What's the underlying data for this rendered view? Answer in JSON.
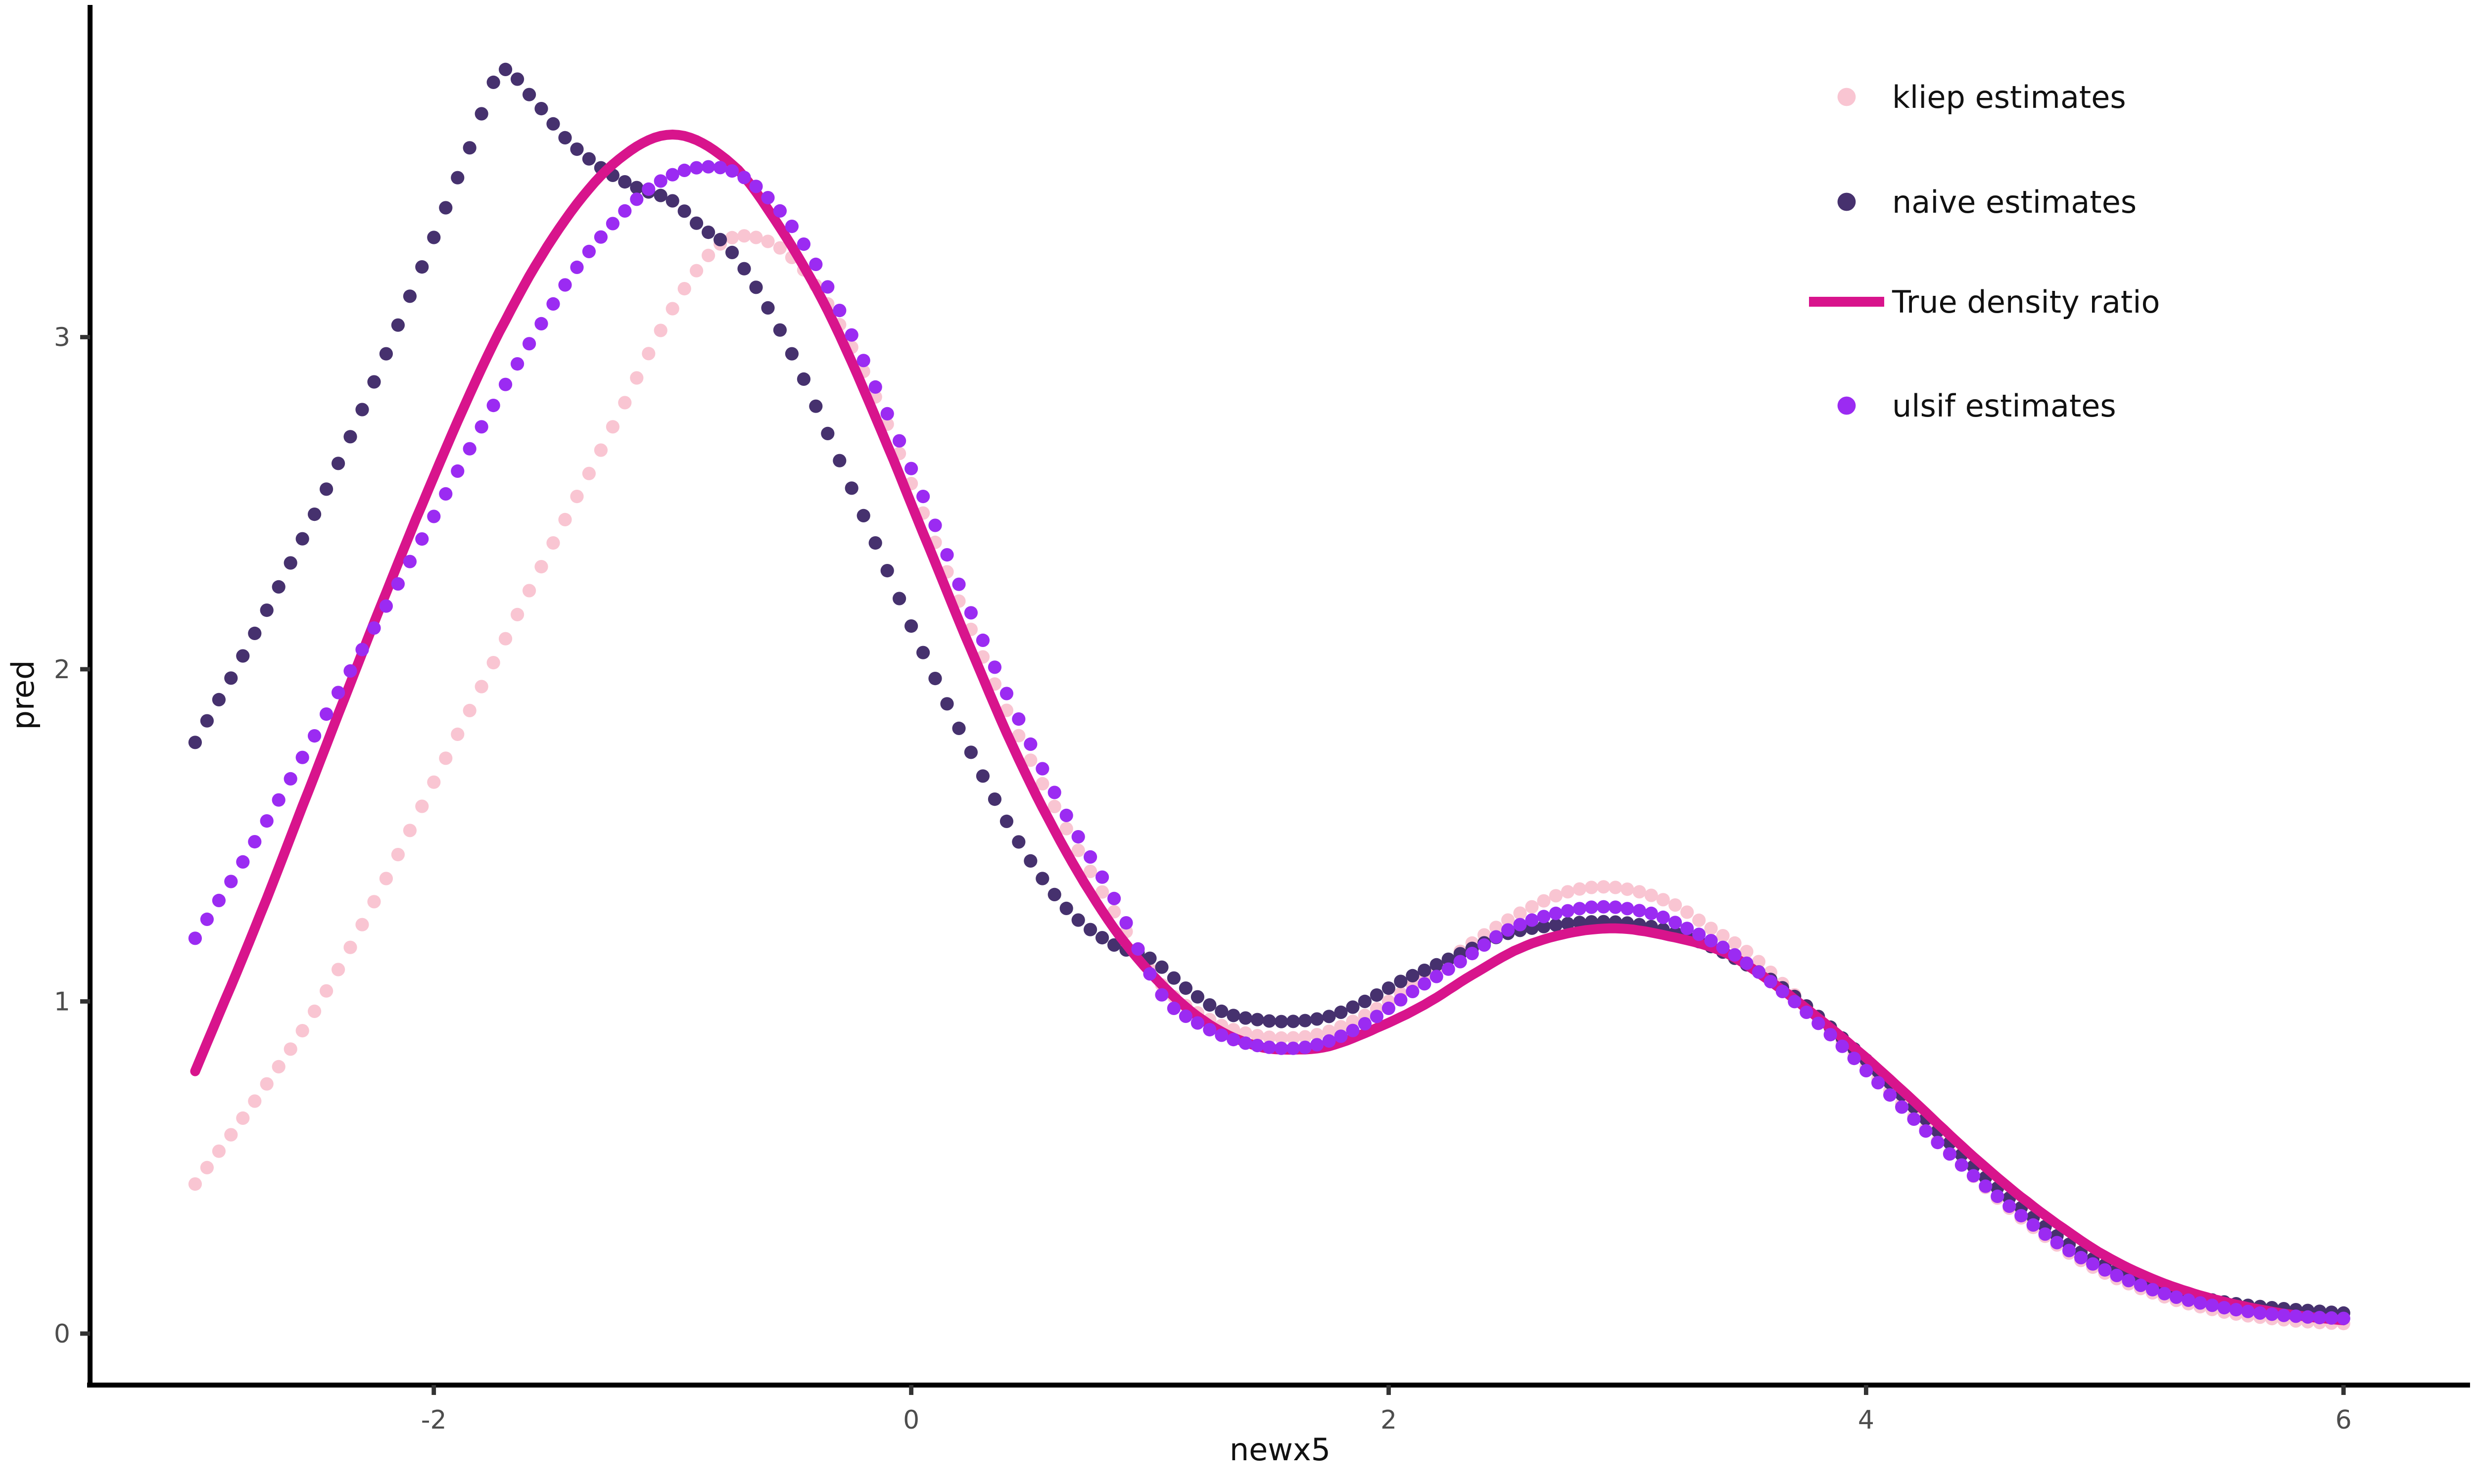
{
  "chart_data": {
    "type": "scatter",
    "title": "",
    "xlabel": "newx5",
    "ylabel": "pred",
    "x_ticks": [
      -2,
      0,
      2,
      4,
      6
    ],
    "y_ticks": [
      0,
      1,
      2,
      3
    ],
    "xlim": [
      -3.44,
      6.53
    ],
    "ylim": [
      -0.155,
      4.0
    ],
    "grid": false,
    "legend_position": "top-right-inside",
    "dot_step": 0.05,
    "x_range": [
      -3.0,
      6.0
    ],
    "series": [
      {
        "name": "kliep estimates",
        "kind": "points",
        "color": "#F9C5D2",
        "points": [
          [
            -3.0,
            0.45
          ],
          [
            -2.75,
            0.7
          ],
          [
            -2.5,
            0.97
          ],
          [
            -2.25,
            1.3
          ],
          [
            -2.0,
            1.66
          ],
          [
            -1.75,
            2.02
          ],
          [
            -1.5,
            2.38
          ],
          [
            -1.25,
            2.73
          ],
          [
            -1.05,
            3.02
          ],
          [
            -0.9,
            3.2
          ],
          [
            -0.78,
            3.29
          ],
          [
            -0.65,
            3.3
          ],
          [
            -0.5,
            3.24
          ],
          [
            -0.35,
            3.1
          ],
          [
            -0.15,
            2.82
          ],
          [
            0.05,
            2.47
          ],
          [
            0.25,
            2.12
          ],
          [
            0.45,
            1.8
          ],
          [
            0.65,
            1.52
          ],
          [
            0.85,
            1.27
          ],
          [
            1.05,
            1.05
          ],
          [
            1.25,
            0.945
          ],
          [
            1.4,
            0.905
          ],
          [
            1.55,
            0.89
          ],
          [
            1.7,
            0.9
          ],
          [
            1.85,
            0.94
          ],
          [
            2.0,
            1.0
          ],
          [
            2.2,
            1.1
          ],
          [
            2.4,
            1.2
          ],
          [
            2.6,
            1.285
          ],
          [
            2.75,
            1.33
          ],
          [
            2.9,
            1.345
          ],
          [
            3.05,
            1.33
          ],
          [
            3.2,
            1.29
          ],
          [
            3.35,
            1.22
          ],
          [
            3.5,
            1.15
          ],
          [
            3.7,
            1.02
          ],
          [
            3.9,
            0.88
          ],
          [
            4.1,
            0.73
          ],
          [
            4.3,
            0.58
          ],
          [
            4.5,
            0.44
          ],
          [
            4.7,
            0.32
          ],
          [
            4.9,
            0.22
          ],
          [
            5.1,
            0.15
          ],
          [
            5.3,
            0.1
          ],
          [
            5.5,
            0.065
          ],
          [
            5.7,
            0.045
          ],
          [
            5.9,
            0.033
          ],
          [
            6.0,
            0.03
          ]
        ]
      },
      {
        "name": "naive estimates",
        "kind": "points",
        "color": "#46316E",
        "points": [
          [
            -3.0,
            1.78
          ],
          [
            -2.8,
            2.04
          ],
          [
            -2.6,
            2.32
          ],
          [
            -2.4,
            2.62
          ],
          [
            -2.2,
            2.95
          ],
          [
            -2.0,
            3.3
          ],
          [
            -1.85,
            3.57
          ],
          [
            -1.72,
            3.8
          ],
          [
            -1.6,
            3.73
          ],
          [
            -1.45,
            3.6
          ],
          [
            -1.3,
            3.51
          ],
          [
            -1.15,
            3.45
          ],
          [
            -1.0,
            3.41
          ],
          [
            -0.88,
            3.33
          ],
          [
            -0.78,
            3.28
          ],
          [
            -0.65,
            3.15
          ],
          [
            -0.5,
            2.95
          ],
          [
            -0.35,
            2.71
          ],
          [
            -0.15,
            2.38
          ],
          [
            0.05,
            2.05
          ],
          [
            0.25,
            1.75
          ],
          [
            0.45,
            1.48
          ],
          [
            0.65,
            1.28
          ],
          [
            0.85,
            1.17
          ],
          [
            1.0,
            1.13
          ],
          [
            1.15,
            1.04
          ],
          [
            1.3,
            0.97
          ],
          [
            1.45,
            0.945
          ],
          [
            1.6,
            0.94
          ],
          [
            1.75,
            0.955
          ],
          [
            1.9,
            1.0
          ],
          [
            2.05,
            1.06
          ],
          [
            2.2,
            1.11
          ],
          [
            2.35,
            1.16
          ],
          [
            2.5,
            1.205
          ],
          [
            2.7,
            1.23
          ],
          [
            2.9,
            1.24
          ],
          [
            3.1,
            1.225
          ],
          [
            3.3,
            1.18
          ],
          [
            3.5,
            1.11
          ],
          [
            3.7,
            1.015
          ],
          [
            3.9,
            0.89
          ],
          [
            4.1,
            0.755
          ],
          [
            4.3,
            0.61
          ],
          [
            4.5,
            0.47
          ],
          [
            4.7,
            0.35
          ],
          [
            4.9,
            0.245
          ],
          [
            5.1,
            0.175
          ],
          [
            5.3,
            0.125
          ],
          [
            5.5,
            0.095
          ],
          [
            5.7,
            0.078
          ],
          [
            5.9,
            0.067
          ],
          [
            6.0,
            0.062
          ]
        ]
      },
      {
        "name": "True density ratio",
        "kind": "line",
        "color": "#D8148C",
        "points": [
          [
            -3.0,
            0.79
          ],
          [
            -2.75,
            1.22
          ],
          [
            -2.5,
            1.68
          ],
          [
            -2.25,
            2.14
          ],
          [
            -2.0,
            2.58
          ],
          [
            -1.75,
            2.98
          ],
          [
            -1.5,
            3.3
          ],
          [
            -1.25,
            3.52
          ],
          [
            -1.0,
            3.61
          ],
          [
            -0.75,
            3.52
          ],
          [
            -0.55,
            3.33
          ],
          [
            -0.35,
            3.08
          ],
          [
            -0.15,
            2.76
          ],
          [
            0.05,
            2.41
          ],
          [
            0.25,
            2.06
          ],
          [
            0.45,
            1.73
          ],
          [
            0.65,
            1.45
          ],
          [
            0.85,
            1.22
          ],
          [
            1.05,
            1.05
          ],
          [
            1.25,
            0.93
          ],
          [
            1.45,
            0.865
          ],
          [
            1.6,
            0.855
          ],
          [
            1.75,
            0.865
          ],
          [
            1.95,
            0.92
          ],
          [
            2.15,
            0.99
          ],
          [
            2.35,
            1.08
          ],
          [
            2.55,
            1.16
          ],
          [
            2.75,
            1.205
          ],
          [
            2.95,
            1.22
          ],
          [
            3.15,
            1.2
          ],
          [
            3.4,
            1.15
          ],
          [
            3.6,
            1.06
          ],
          [
            3.8,
            0.95
          ],
          [
            4.0,
            0.83
          ],
          [
            4.2,
            0.7
          ],
          [
            4.4,
            0.565
          ],
          [
            4.6,
            0.44
          ],
          [
            4.8,
            0.33
          ],
          [
            5.0,
            0.235
          ],
          [
            5.2,
            0.165
          ],
          [
            5.4,
            0.115
          ],
          [
            5.6,
            0.08
          ],
          [
            5.8,
            0.055
          ],
          [
            6.0,
            0.04
          ]
        ]
      },
      {
        "name": "ulsif estimates",
        "kind": "points",
        "color": "#9B2BF2",
        "points": [
          [
            -3.0,
            1.19
          ],
          [
            -2.8,
            1.42
          ],
          [
            -2.6,
            1.67
          ],
          [
            -2.4,
            1.93
          ],
          [
            -2.2,
            2.19
          ],
          [
            -2.0,
            2.46
          ],
          [
            -1.8,
            2.73
          ],
          [
            -1.6,
            2.98
          ],
          [
            -1.4,
            3.21
          ],
          [
            -1.2,
            3.38
          ],
          [
            -1.05,
            3.47
          ],
          [
            -0.9,
            3.51
          ],
          [
            -0.75,
            3.5
          ],
          [
            -0.6,
            3.42
          ],
          [
            -0.45,
            3.28
          ],
          [
            -0.3,
            3.08
          ],
          [
            -0.15,
            2.85
          ],
          [
            0.05,
            2.52
          ],
          [
            0.25,
            2.17
          ],
          [
            0.45,
            1.85
          ],
          [
            0.65,
            1.56
          ],
          [
            0.85,
            1.31
          ],
          [
            1.05,
            1.02
          ],
          [
            1.2,
            0.935
          ],
          [
            1.35,
            0.885
          ],
          [
            1.5,
            0.862
          ],
          [
            1.65,
            0.862
          ],
          [
            1.8,
            0.895
          ],
          [
            1.95,
            0.955
          ],
          [
            2.1,
            1.03
          ],
          [
            2.3,
            1.12
          ],
          [
            2.5,
            1.215
          ],
          [
            2.7,
            1.265
          ],
          [
            2.9,
            1.285
          ],
          [
            3.1,
            1.265
          ],
          [
            3.25,
            1.22
          ],
          [
            3.45,
            1.14
          ],
          [
            3.65,
            1.03
          ],
          [
            3.85,
            0.9
          ],
          [
            4.05,
            0.755
          ],
          [
            4.25,
            0.61
          ],
          [
            4.45,
            0.475
          ],
          [
            4.65,
            0.355
          ],
          [
            4.85,
            0.25
          ],
          [
            5.05,
            0.175
          ],
          [
            5.25,
            0.12
          ],
          [
            5.45,
            0.085
          ],
          [
            5.65,
            0.062
          ],
          [
            5.85,
            0.05
          ],
          [
            6.0,
            0.046
          ]
        ]
      }
    ],
    "legend_entries": [
      {
        "label": "kliep estimates",
        "key": "dot",
        "color": "#F9C5D2"
      },
      {
        "label": "naive estimates",
        "key": "dot",
        "color": "#46316E"
      },
      {
        "label": "True density ratio",
        "key": "line",
        "color": "#D8148C"
      },
      {
        "label": "ulsif estimates",
        "key": "dot",
        "color": "#9B2BF2"
      }
    ]
  },
  "axes": {
    "x_label": "newx5",
    "y_label": "pred",
    "axis_line_color": "#000000",
    "tick_color": "#333333",
    "tick_label_color": "#4d4d4d",
    "title_color": "#111111"
  }
}
